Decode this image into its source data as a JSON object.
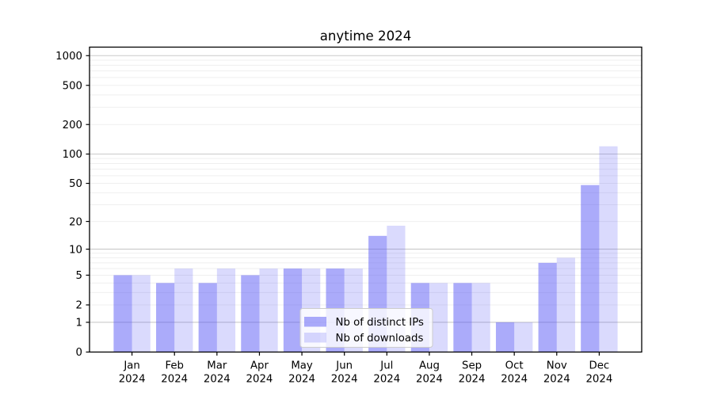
{
  "chart_data": {
    "type": "bar",
    "title": "anytime 2024",
    "months": [
      "Jan",
      "Feb",
      "Mar",
      "Apr",
      "May",
      "Jun",
      "Jul",
      "Aug",
      "Sep",
      "Oct",
      "Nov",
      "Dec"
    ],
    "year_label": "2024",
    "series": [
      {
        "name": "Nb of distinct IPs",
        "color": "rgba(87,87,245,0.50)",
        "values": [
          5,
          4,
          4,
          5,
          6,
          6,
          14,
          4,
          4,
          1,
          7,
          48
        ]
      },
      {
        "name": "Nb of downloads",
        "color": "rgba(87,87,245,0.22)",
        "values": [
          5,
          6,
          6,
          6,
          6,
          6,
          18,
          4,
          4,
          1,
          8,
          120
        ]
      }
    ],
    "yticks": [
      0,
      1,
      2,
      5,
      10,
      20,
      50,
      100,
      200,
      500,
      1000
    ],
    "yscale": "log1p",
    "y_axis_max": 1220,
    "grid": true,
    "legend": {
      "location": "lower center"
    },
    "colors": {
      "major_grid": "#c9c9c9",
      "minor_grid": "#efefef",
      "axis": "#000000",
      "legend_border": "#cccccc",
      "legend_bg": "#ffffff"
    }
  }
}
